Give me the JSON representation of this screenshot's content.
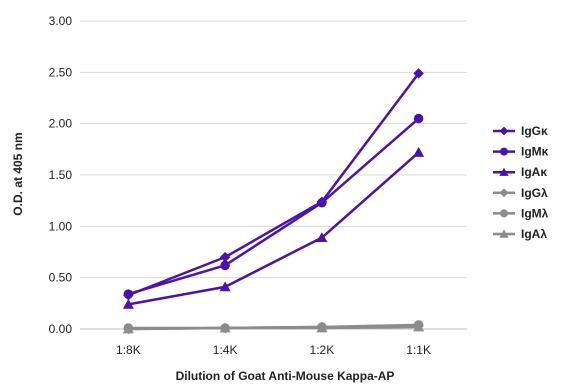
{
  "chart_data": {
    "type": "line",
    "categories": [
      "1:8K",
      "1:4K",
      "1:2K",
      "1:1K"
    ],
    "series": [
      {
        "name": "IgGκ",
        "values": [
          0.33,
          0.7,
          1.24,
          2.49
        ],
        "color": "#4a12b0",
        "marker": "diamond"
      },
      {
        "name": "IgMκ",
        "values": [
          0.34,
          0.62,
          1.23,
          2.05
        ],
        "color": "#4a12b0",
        "marker": "circle"
      },
      {
        "name": "IgAκ",
        "values": [
          0.24,
          0.41,
          0.89,
          1.72
        ],
        "color": "#4a12b0",
        "marker": "triangle"
      },
      {
        "name": "IgGλ",
        "values": [
          0.0,
          0.01,
          0.02,
          0.03
        ],
        "color": "#8c8c8c",
        "marker": "diamond"
      },
      {
        "name": "IgMλ",
        "values": [
          0.01,
          0.01,
          0.02,
          0.04
        ],
        "color": "#8c8c8c",
        "marker": "circle"
      },
      {
        "name": "IgAλ",
        "values": [
          0.0,
          0.01,
          0.01,
          0.02
        ],
        "color": "#8c8c8c",
        "marker": "triangle"
      }
    ],
    "xlabel": "Dilution of Goat Anti-Mouse Kappa-AP",
    "ylabel": "O.D. at 405 nm",
    "ylim": [
      0,
      3
    ],
    "yticks": [
      "0.00",
      "0.50",
      "1.00",
      "1.50",
      "2.00",
      "2.50",
      "3.00"
    ],
    "grid": true,
    "legend": "right"
  }
}
